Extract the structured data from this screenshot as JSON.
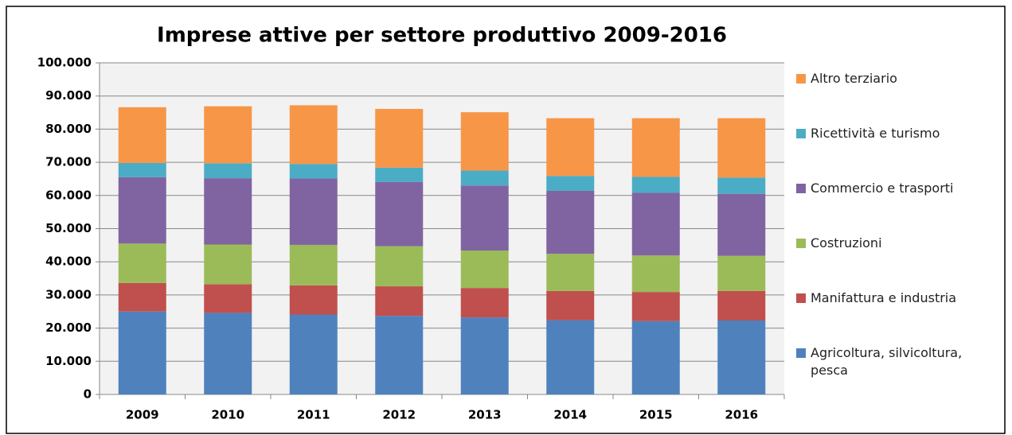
{
  "chart_data": {
    "type": "stacked_bar",
    "title": "Imprese attive per settore produttivo 2009-2016",
    "categories": [
      "2009",
      "2010",
      "2011",
      "2012",
      "2013",
      "2014",
      "2015",
      "2016"
    ],
    "series": [
      {
        "name": "Agricoltura, silvicoltura, pesca",
        "color": "#4f81bd",
        "values": [
          25000,
          24600,
          24100,
          23700,
          23200,
          22400,
          22100,
          22300
        ]
      },
      {
        "name": "Manifattura e industria",
        "color": "#c0504d",
        "values": [
          8600,
          8600,
          8800,
          8900,
          8900,
          8800,
          8800,
          8900
        ]
      },
      {
        "name": "Costruzioni",
        "color": "#9bbb59",
        "values": [
          11900,
          12000,
          12200,
          12100,
          11300,
          11200,
          11000,
          10600
        ]
      },
      {
        "name": "Commercio e trasporti",
        "color": "#8064a2",
        "values": [
          20000,
          20000,
          20000,
          19400,
          19600,
          19000,
          18900,
          18700
        ]
      },
      {
        "name": "Ricettività e turismo",
        "color": "#4bacc6",
        "values": [
          4300,
          4500,
          4400,
          4300,
          4500,
          4500,
          4800,
          4900
        ]
      },
      {
        "name": "Altro terziario",
        "color": "#f79646",
        "values": [
          16800,
          17200,
          17700,
          17700,
          17600,
          17400,
          17700,
          17900
        ]
      }
    ],
    "ylim": [
      0,
      100000
    ],
    "yticks": [
      0,
      {
        "value": 10000,
        "label": "10.000"
      },
      {
        "value": 20000,
        "label": "20.000"
      },
      {
        "value": 30000,
        "label": "30.000"
      },
      {
        "value": 40000,
        "label": "40.000"
      },
      {
        "value": 50000,
        "label": "50.000"
      },
      {
        "value": 60000,
        "label": "60.000"
      },
      {
        "value": 70000,
        "label": "70.000"
      },
      {
        "value": 80000,
        "label": "80.000"
      },
      {
        "value": 90000,
        "label": "90.000"
      },
      {
        "value": 100000,
        "label": "100.000"
      }
    ],
    "grid": true,
    "legend": "right"
  }
}
